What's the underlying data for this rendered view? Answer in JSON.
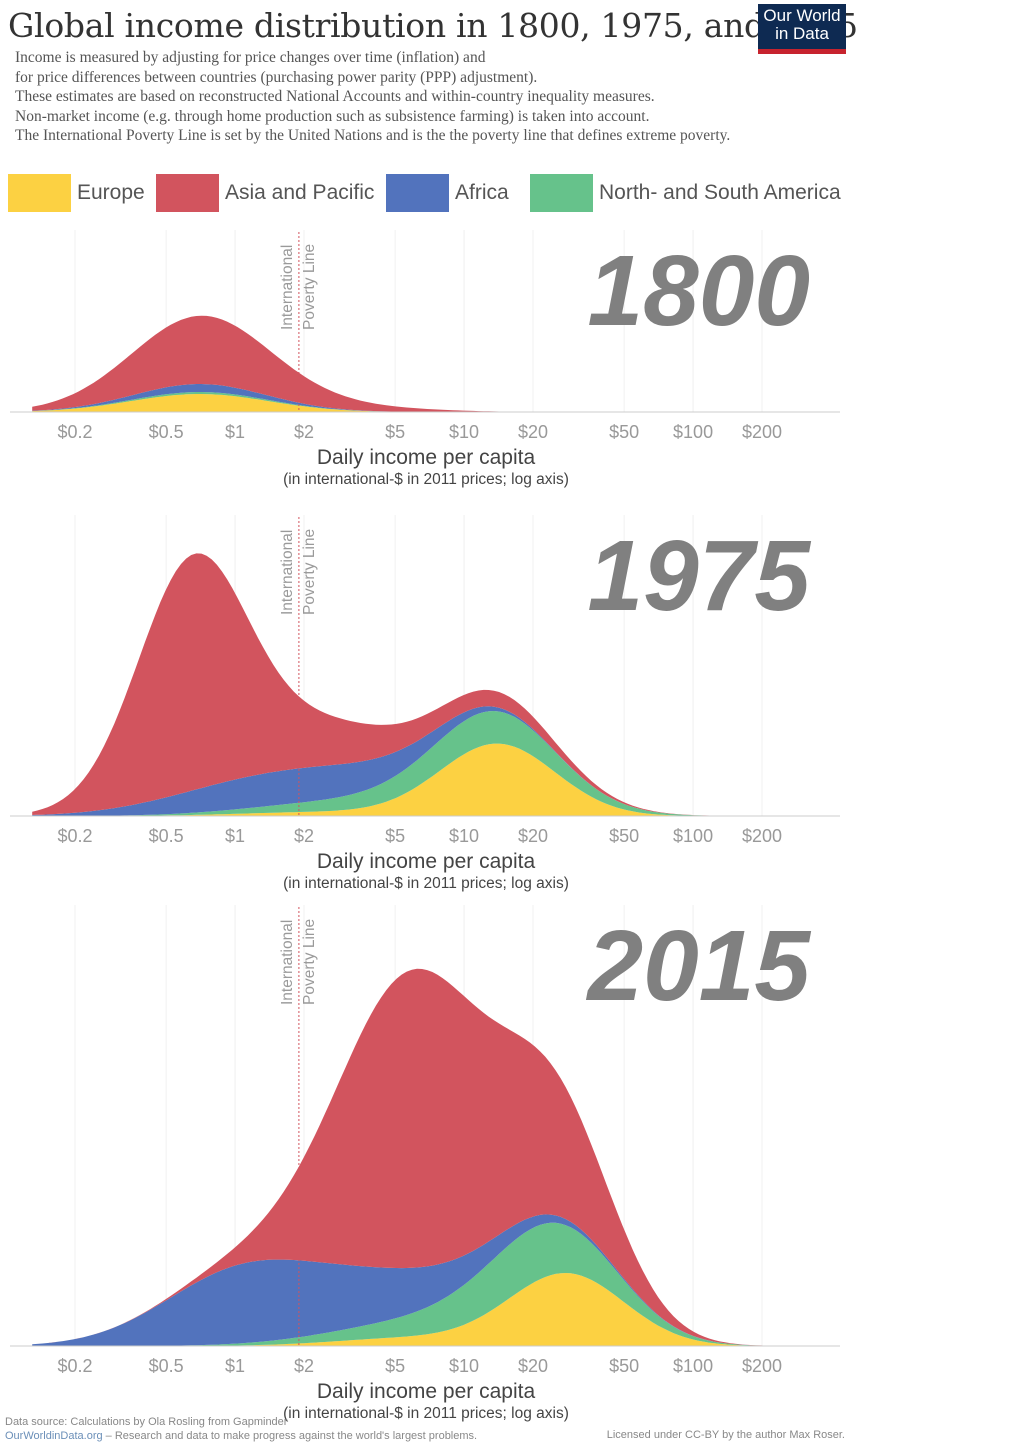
{
  "header": {
    "title": "Global income distribution in 1800, 1975, and 2015",
    "logo_line1": "Our World",
    "logo_line2": "in Data",
    "subtitle_lines": [
      "Income is measured by adjusting for price changes over time (inflation) and",
      "for price differences between countries (purchasing power parity (PPP) adjustment).",
      "These estimates are based on reconstructed National Accounts and within-country inequality measures.",
      "Non-market income (e.g. through home production such as subsistence farming) is taken into account.",
      "The International Poverty Line is set by the United Nations and is the the poverty line that defines extreme poverty."
    ]
  },
  "legend": [
    {
      "label": "Europe",
      "color": "#fcd142"
    },
    {
      "label": "Asia and Pacific",
      "color": "#d2545e"
    },
    {
      "label": "Africa",
      "color": "#5273bd"
    },
    {
      "label": "North- and South America",
      "color": "#66c28b"
    }
  ],
  "footer": {
    "source": "Data source: Calculations by Ola Rosling from Gapminder",
    "site": "OurWorldinData.org",
    "site_tagline": " – Research and data to make progress against the world's largest problems.",
    "license": "Licensed under CC-BY by the author Max Roser."
  },
  "chart_data": [
    {
      "type": "area",
      "title": "1800",
      "xlabel": "Daily income per capita",
      "xlabel_sub": "(in international-$ in 2011 prices; log axis)",
      "xscale": "log",
      "x_ticks": [
        0.2,
        0.5,
        1,
        2,
        5,
        10,
        20,
        50,
        100,
        200
      ],
      "x_tick_labels": [
        "$0.2",
        "$0.5",
        "$1",
        "$2",
        "$5",
        "$10",
        "$20",
        "$50",
        "$100",
        "$200"
      ],
      "annotation": "International Poverty Line",
      "poverty_line_x": 1.9,
      "stacking": "stacked",
      "series": [
        {
          "name": "Europe",
          "color": "#fcd142",
          "peaks": [
            {
              "x": 0.7,
              "h": 18,
              "w": 0.5
            }
          ]
        },
        {
          "name": "North- and South America",
          "color": "#66c28b",
          "peaks": [
            {
              "x": 0.7,
              "h": 2,
              "w": 0.5
            }
          ]
        },
        {
          "name": "Africa",
          "color": "#5273bd",
          "peaks": [
            {
              "x": 0.7,
              "h": 8,
              "w": 0.45
            }
          ]
        },
        {
          "name": "Asia and Pacific",
          "color": "#d2545e",
          "peaks": [
            {
              "x": 0.72,
              "h": 68,
              "w": 0.52
            },
            {
              "x": 3.5,
              "h": 4,
              "w": 0.5
            }
          ]
        }
      ]
    },
    {
      "type": "area",
      "title": "1975",
      "xlabel": "Daily income per capita",
      "xlabel_sub": "(in international-$ in 2011 prices; log axis)",
      "xscale": "log",
      "x_ticks": [
        0.2,
        0.5,
        1,
        2,
        5,
        10,
        20,
        50,
        100,
        200
      ],
      "x_tick_labels": [
        "$0.2",
        "$0.5",
        "$1",
        "$2",
        "$5",
        "$10",
        "$20",
        "$50",
        "$100",
        "$200"
      ],
      "annotation": "International Poverty Line",
      "poverty_line_x": 1.9,
      "stacking": "stacked",
      "series": [
        {
          "name": "Europe",
          "color": "#fcd142",
          "peaks": [
            {
              "x": 14,
              "h": 72,
              "w": 0.42
            },
            {
              "x": 2.5,
              "h": 4,
              "w": 0.6
            }
          ]
        },
        {
          "name": "North- and South America",
          "color": "#66c28b",
          "peaks": [
            {
              "x": 12,
              "h": 32,
              "w": 0.55
            },
            {
              "x": 2.5,
              "h": 8,
              "w": 0.6
            }
          ]
        },
        {
          "name": "Africa",
          "color": "#5273bd",
          "peaks": [
            {
              "x": 1.2,
              "h": 28,
              "w": 0.62
            },
            {
              "x": 4,
              "h": 18,
              "w": 0.5
            }
          ]
        },
        {
          "name": "Asia and Pacific",
          "color": "#d2545e",
          "peaks": [
            {
              "x": 0.65,
              "h": 230,
              "w": 0.4
            },
            {
              "x": 2.5,
              "h": 40,
              "w": 0.5
            },
            {
              "x": 14,
              "h": 14,
              "w": 0.45
            }
          ]
        }
      ]
    },
    {
      "type": "area",
      "title": "2015",
      "xlabel": "Daily income per capita",
      "xlabel_sub": "(in international-$ in 2011 prices; log axis)",
      "xscale": "log",
      "x_ticks": [
        0.2,
        0.5,
        1,
        2,
        5,
        10,
        20,
        50,
        100,
        200
      ],
      "x_tick_labels": [
        "$0.2",
        "$0.5",
        "$1",
        "$2",
        "$5",
        "$10",
        "$20",
        "$50",
        "$100",
        "$200"
      ],
      "annotation": "International Poverty Line",
      "poverty_line_x": 1.9,
      "stacking": "stacked",
      "series": [
        {
          "name": "Europe",
          "color": "#fcd142",
          "peaks": [
            {
              "x": 28,
              "h": 72,
              "w": 0.42
            },
            {
              "x": 6,
              "h": 8,
              "w": 0.55
            }
          ]
        },
        {
          "name": "North- and South America",
          "color": "#66c28b",
          "peaks": [
            {
              "x": 20,
              "h": 52,
              "w": 0.5
            },
            {
              "x": 5,
              "h": 12,
              "w": 0.6
            }
          ]
        },
        {
          "name": "Africa",
          "color": "#5273bd",
          "peaks": [
            {
              "x": 1,
              "h": 62,
              "w": 0.55
            },
            {
              "x": 4,
              "h": 45,
              "w": 0.7
            }
          ]
        },
        {
          "name": "Asia and Pacific",
          "color": "#d2545e",
          "peaks": [
            {
              "x": 6,
              "h": 295,
              "w": 0.55
            },
            {
              "x": 25,
              "h": 95,
              "w": 0.4
            }
          ]
        }
      ]
    }
  ]
}
